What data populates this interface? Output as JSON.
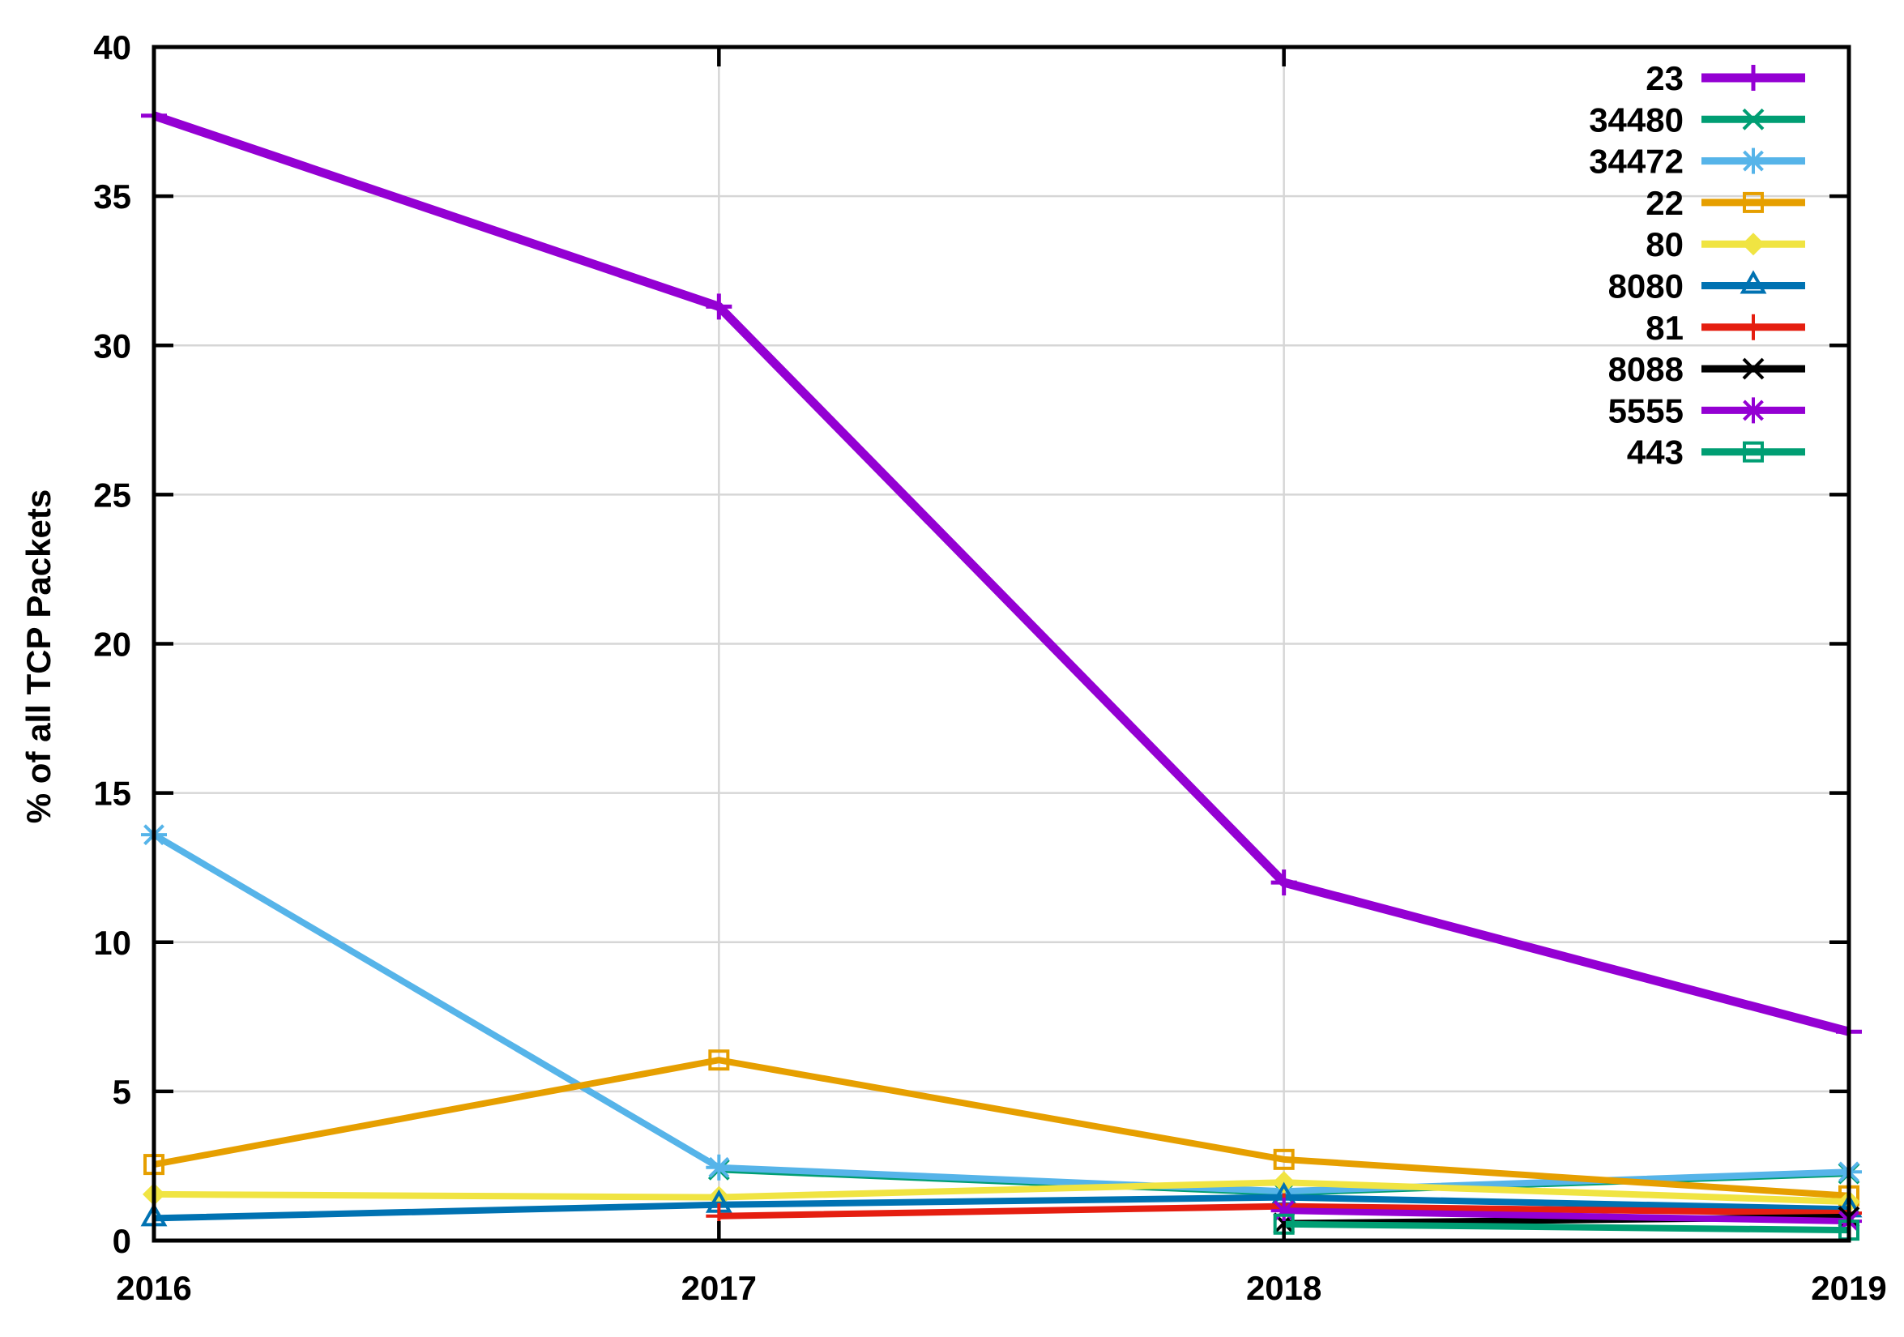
{
  "figure": {
    "title": "",
    "ylabel": "% of all TCP Packets",
    "background_color": "#ffffff",
    "border_color": "#000000",
    "grid_color": "#d6d6d6"
  },
  "chart_data": {
    "type": "line",
    "x": [
      2016,
      2017,
      2018,
      2019
    ],
    "x_tick_labels": [
      "2016",
      "2017",
      "2018",
      "2019"
    ],
    "y_ticks": [
      0,
      5,
      10,
      15,
      20,
      25,
      30,
      35,
      40
    ],
    "y_tick_labels": [
      "0",
      "5",
      "10",
      "15",
      "20",
      "25",
      "30",
      "35",
      "40"
    ],
    "xlim": [
      2016,
      2019
    ],
    "ylim": [
      0,
      40
    ],
    "xlabel": "",
    "ylabel": "% of all TCP Packets",
    "grid": true,
    "legend_position": "top-right-inside",
    "legend_order": [
      "23",
      "34480",
      "34472",
      "22",
      "80",
      "8080",
      "81",
      "8088",
      "5555",
      "443"
    ],
    "series": [
      {
        "name": "23",
        "color": "#9400d3",
        "marker": "plus",
        "line_width": 11,
        "values": [
          37.7,
          31.3,
          12.0,
          7.0
        ]
      },
      {
        "name": "34480",
        "color": "#009e73",
        "marker": "x",
        "line_width": 8,
        "values": [
          null,
          2.38,
          1.6,
          2.25
        ]
      },
      {
        "name": "34472",
        "color": "#56b4e9",
        "marker": "asterisk",
        "line_width": 8,
        "values": [
          13.6,
          2.45,
          1.65,
          2.3
        ]
      },
      {
        "name": "22",
        "color": "#e69f00",
        "marker": "square",
        "line_width": 8,
        "values": [
          2.55,
          6.05,
          2.72,
          1.5
        ]
      },
      {
        "name": "80",
        "color": "#f0e442",
        "marker": "diamond",
        "line_width": 8,
        "values": [
          1.55,
          1.45,
          1.95,
          1.3
        ]
      },
      {
        "name": "8080",
        "color": "#0072b2",
        "marker": "triangle",
        "line_width": 8,
        "values": [
          0.75,
          1.2,
          1.45,
          1.05
        ]
      },
      {
        "name": "81",
        "color": "#e51e10",
        "marker": "plus",
        "line_width": 8,
        "values": [
          null,
          0.82,
          1.15,
          0.92
        ]
      },
      {
        "name": "8088",
        "color": "#000000",
        "marker": "x",
        "line_width": 8,
        "values": [
          null,
          null,
          0.58,
          0.79
        ]
      },
      {
        "name": "5555",
        "color": "#9400d3",
        "marker": "asterisk",
        "line_width": 8,
        "values": [
          null,
          null,
          1.0,
          0.65
        ]
      },
      {
        "name": "443",
        "color": "#009e73",
        "marker": "square",
        "line_width": 8,
        "values": [
          null,
          null,
          0.55,
          0.35
        ]
      }
    ]
  }
}
